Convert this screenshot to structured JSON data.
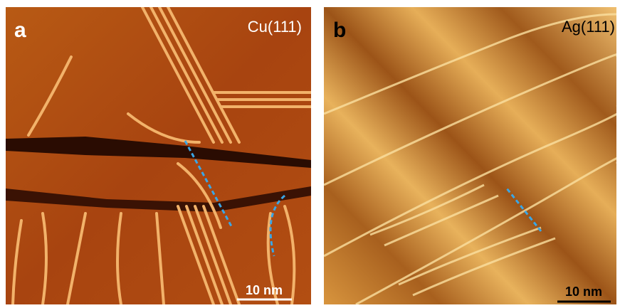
{
  "panels": [
    {
      "label": "a",
      "substrate": "Cu(111)",
      "scale_bar": "10 nm"
    },
    {
      "label": "b",
      "substrate": "Ag(111)",
      "scale_bar": "10 nm"
    }
  ]
}
